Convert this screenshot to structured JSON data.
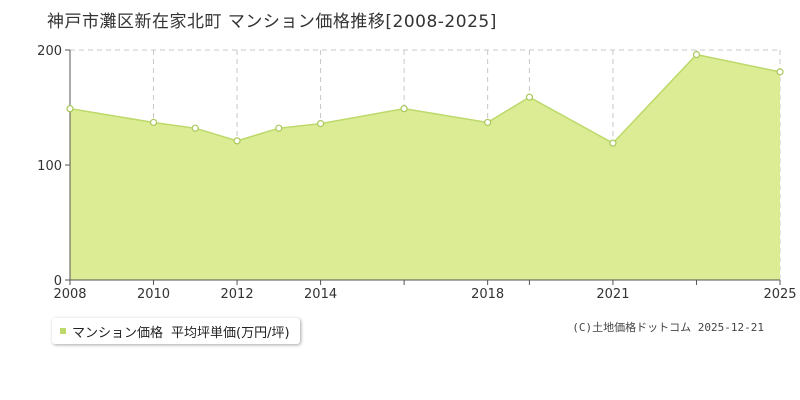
{
  "title": "神戸市灘区新在家北町 マンション価格推移[2008-2025]",
  "legend": {
    "label": "マンション価格",
    "unit": "平均坪単価(万円/坪)"
  },
  "copyright": "(C)土地価格ドットコム 2025-12-21",
  "colors": {
    "fill": "#dcec95",
    "line": "#bcd96a",
    "point_stroke": "#a9c85a",
    "point_fill": "#ffffff",
    "grid": "#c8c8c8",
    "axis": "#555555"
  },
  "chart_data": {
    "type": "area",
    "x": [
      2008,
      2010,
      2011,
      2012,
      2013,
      2014,
      2016,
      2018,
      2019,
      2021,
      2023,
      2025
    ],
    "series": [
      {
        "name": "マンション価格",
        "values": [
          149,
          137,
          132,
          121,
          132,
          136,
          149,
          137,
          159,
          119,
          196,
          181
        ]
      }
    ],
    "ylim": [
      0,
      200
    ],
    "yticks": [
      0,
      100,
      200
    ],
    "xlim": [
      2008,
      2025
    ],
    "xtick_labels": [
      "2008",
      "2010",
      "2012",
      "2014",
      "2018",
      "2021",
      "2025"
    ],
    "xtick_marks": [
      2008,
      2010,
      2012,
      2014,
      2016,
      2018,
      2019,
      2021,
      2023,
      2025
    ],
    "grid": true
  }
}
